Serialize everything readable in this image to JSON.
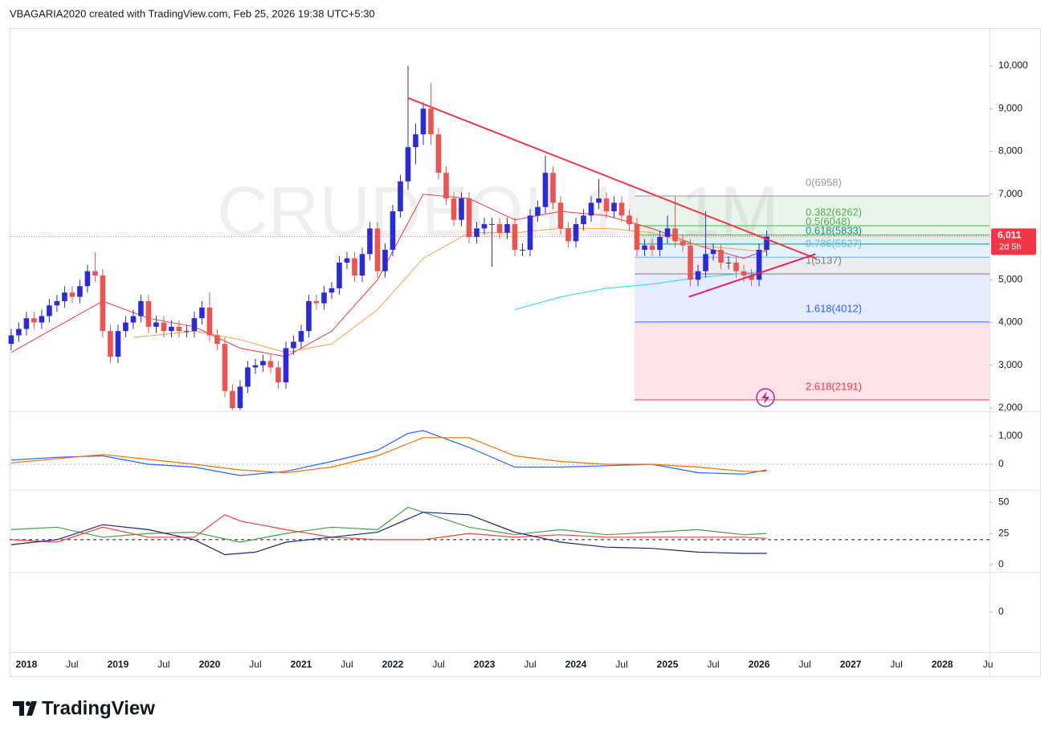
{
  "header": "VBAGARIA2020 created with TradingView.com, Feb 25, 2026 19:38 UTC+5:30",
  "watermark": "CRUDEOIL1!, 1M",
  "logo": "TradingView",
  "chart_data": {
    "type": "candlestick",
    "xlim": [
      -0.2,
      128.2
    ],
    "xticks": [
      {
        "value": 2,
        "label": "2018"
      },
      {
        "value": 8,
        "label": "Jul"
      },
      {
        "value": 14,
        "label": "2019"
      },
      {
        "value": 20,
        "label": "Jul"
      },
      {
        "value": 26,
        "label": "2020"
      },
      {
        "value": 32,
        "label": "Jul"
      },
      {
        "value": 38,
        "label": "2021"
      },
      {
        "value": 44,
        "label": "Jul"
      },
      {
        "value": 50,
        "label": "2022"
      },
      {
        "value": 56,
        "label": "Jul"
      },
      {
        "value": 62,
        "label": "2023"
      },
      {
        "value": 68,
        "label": "Jul"
      },
      {
        "value": 74,
        "label": "2024"
      },
      {
        "value": 80,
        "label": "Jul"
      },
      {
        "value": 86,
        "label": "2025"
      },
      {
        "value": 92,
        "label": "Jul"
      },
      {
        "value": 98,
        "label": "2026"
      },
      {
        "value": 104,
        "label": "Jul"
      },
      {
        "value": 110,
        "label": "2027"
      },
      {
        "value": 116,
        "label": "Jul"
      },
      {
        "value": 122,
        "label": "2028"
      },
      {
        "value": 128,
        "label": "Ju"
      }
    ],
    "ylim": [
      1925,
      10883
    ],
    "yticks": [
      {
        "value": 2000,
        "label": "2,000"
      },
      {
        "value": 3000,
        "label": "3,000"
      },
      {
        "value": 4000,
        "label": "4,000"
      },
      {
        "value": 5000,
        "label": "5,000"
      },
      {
        "value": 6000,
        "label": "6,000"
      },
      {
        "value": 7000,
        "label": "7,000"
      },
      {
        "value": 8000,
        "label": "8,000"
      },
      {
        "value": 9000,
        "label": "9,000"
      },
      {
        "value": 10000,
        "label": "10,000"
      }
    ],
    "up_color": "#2a2ad8",
    "down_color": "#ef5350",
    "open": [
      3500,
      3700,
      3850,
      4100,
      4000,
      4150,
      4400,
      4500,
      4700,
      4600,
      4850,
      5200,
      5100,
      3800,
      3200,
      3800,
      4000,
      4150,
      4500,
      3900,
      4000,
      3800,
      3900,
      3800,
      3800,
      4100,
      4350,
      3700,
      3500,
      2400,
      2000,
      2500,
      2950,
      3000,
      3100,
      2950,
      2600,
      3400,
      3550,
      3800,
      4500,
      4450,
      4700,
      4800,
      5400,
      5500,
      5100,
      5600,
      6200,
      5200,
      5700,
      6600,
      7300,
      8100,
      8400,
      9000,
      8400,
      7500,
      6900,
      6400,
      6900,
      6000,
      6200,
      6300,
      6300,
      6100,
      6300,
      5700,
      5700,
      6500,
      6700,
      7500,
      6800,
      6200,
      5900,
      6300,
      6500,
      6800,
      6900,
      6600,
      6800,
      6500,
      6300,
      5700,
      5800,
      5700,
      6000,
      6200,
      5900,
      5800,
      5000,
      5200,
      5600,
      5700,
      5400,
      5400,
      5200,
      5100,
      5000,
      5700
    ],
    "high": [
      3850,
      4000,
      4250,
      4250,
      4300,
      4550,
      4650,
      4850,
      4850,
      5000,
      5350,
      5650,
      5250,
      3950,
      3950,
      4150,
      4300,
      4650,
      4650,
      4150,
      4150,
      4050,
      4050,
      3950,
      4250,
      4500,
      4700,
      3850,
      3650,
      2550,
      2650,
      3100,
      3150,
      3250,
      3250,
      3100,
      3550,
      3700,
      3950,
      4650,
      4650,
      4850,
      4950,
      5550,
      5650,
      5650,
      5750,
      6350,
      6350,
      5850,
      6750,
      7450,
      10000,
      8650,
      9150,
      9600,
      8550,
      7650,
      7050,
      7050,
      7050,
      6350,
      6450,
      6450,
      6450,
      6450,
      6450,
      5850,
      6650,
      6850,
      7900,
      7650,
      6950,
      6350,
      6450,
      6650,
      6950,
      7350,
      7050,
      6950,
      6950,
      6650,
      6450,
      5950,
      5950,
      6150,
      6500,
      6950,
      6050,
      5950,
      5350,
      6600,
      5850,
      5850,
      5550,
      5550,
      5350,
      5250,
      5850,
      6150
    ],
    "low": [
      3350,
      3550,
      3700,
      3850,
      3850,
      4000,
      4250,
      4350,
      4450,
      4450,
      4700,
      4950,
      3650,
      3050,
      3050,
      3650,
      3850,
      4000,
      3750,
      3750,
      3650,
      3650,
      3650,
      3650,
      3650,
      3950,
      3550,
      3350,
      2250,
      1950,
      1950,
      2350,
      2800,
      2850,
      2800,
      2450,
      2450,
      3250,
      3400,
      3650,
      4300,
      4300,
      4550,
      4650,
      5250,
      4950,
      4950,
      5450,
      5050,
      5050,
      5550,
      6450,
      7100,
      7700,
      8150,
      8150,
      7350,
      6750,
      6250,
      6250,
      5850,
      5850,
      6050,
      5300,
      5950,
      5950,
      5550,
      5550,
      5550,
      6350,
      6550,
      6650,
      6050,
      5750,
      5750,
      6150,
      6350,
      6650,
      6450,
      6450,
      6350,
      6150,
      5550,
      5550,
      5550,
      5550,
      5850,
      5750,
      5650,
      4850,
      4850,
      5050,
      5450,
      5250,
      5250,
      5050,
      4950,
      4850,
      4850,
      5550
    ],
    "close": [
      3700,
      3850,
      4100,
      4000,
      4150,
      4400,
      4500,
      4700,
      4600,
      4850,
      5200,
      5100,
      3800,
      3200,
      3800,
      4000,
      4150,
      4500,
      3900,
      4000,
      3800,
      3900,
      3800,
      3800,
      4100,
      4350,
      3700,
      3500,
      2400,
      2000,
      2500,
      2950,
      3000,
      3100,
      2950,
      2600,
      3400,
      3550,
      3800,
      4500,
      4450,
      4700,
      4800,
      5400,
      5500,
      5100,
      5600,
      6200,
      5200,
      5700,
      6600,
      7300,
      8100,
      8400,
      9000,
      8400,
      7500,
      6900,
      6400,
      6900,
      6000,
      6200,
      6300,
      6300,
      6100,
      6300,
      5700,
      5700,
      6500,
      6700,
      7500,
      6800,
      6200,
      5900,
      6300,
      6500,
      6800,
      6900,
      6600,
      6800,
      6500,
      6300,
      5700,
      5800,
      5700,
      6000,
      6200,
      5900,
      5800,
      5000,
      5200,
      5600,
      5700,
      5400,
      5400,
      5200,
      5100,
      5000,
      5700,
      6011
    ],
    "last_price": {
      "value": 6011,
      "label": "6,011",
      "countdown": "2d 5h",
      "color": "#f23645"
    },
    "moving_averages": [
      {
        "color": "#f23645",
        "x": [
          0,
          6,
          12,
          18,
          24,
          30,
          36,
          42,
          48,
          54,
          60,
          66,
          72,
          78,
          84,
          90,
          96,
          99
        ],
        "values": [
          3300,
          3900,
          4500,
          4100,
          3900,
          3400,
          3200,
          3800,
          5000,
          7000,
          6900,
          6400,
          6600,
          6500,
          6200,
          5800,
          5500,
          5700
        ]
      },
      {
        "color": "#f7a046",
        "x": [
          16,
          24,
          30,
          36,
          42,
          48,
          54,
          60,
          66,
          72,
          78,
          84,
          90,
          96,
          99
        ],
        "values": [
          3650,
          3800,
          3600,
          3300,
          3500,
          4300,
          5500,
          6100,
          6100,
          6200,
          6200,
          6100,
          5800,
          5700,
          5650
        ]
      },
      {
        "color": "#26d7e8",
        "x": [
          66,
          72,
          78,
          84,
          90,
          96,
          99
        ],
        "values": [
          4300,
          4600,
          4800,
          4900,
          5050,
          5150,
          5200
        ]
      }
    ],
    "fib_start": 81.7,
    "fib_levels": [
      {
        "value": 6958,
        "label": "0(6958)",
        "color": "#9598a1",
        "fill": "rgba(76,175,80,0.12)"
      },
      {
        "value": 6262,
        "label": "0.382(6262)",
        "color": "#4caf50",
        "fill": "rgba(76,175,80,0.14)"
      },
      {
        "value": 6048,
        "label": "0.5(6048)",
        "color": "#4caf50",
        "fill": "rgba(8,153,129,0.14)"
      },
      {
        "value": 5833,
        "label": "0.618(5833)",
        "color": "#089981",
        "fill": "rgba(100,181,246,0.18)"
      },
      {
        "value": 5527,
        "label": "0.786(5527)",
        "color": "#64b5f6",
        "fill": "rgba(120,123,134,0.14)"
      },
      {
        "value": 5137,
        "label": "1(5137)",
        "color": "#787b86",
        "fill": "rgba(41,98,255,0.12)"
      },
      {
        "value": 4012,
        "label": "1.618(4012)",
        "color": "#2962ff",
        "fill": "rgba(242,54,69,0.14)"
      },
      {
        "value": 2191,
        "label": "2.618(2191)",
        "color": "#f23645"
      }
    ],
    "trendlines": [
      {
        "color": "#f23645",
        "x": [
          52,
          105.4
        ],
        "values": [
          9250,
          5500
        ]
      },
      {
        "color": "#e91e63",
        "x": [
          88.8,
          105.4
        ],
        "values": [
          4600,
          5600
        ]
      }
    ],
    "panes": [
      {
        "type": "line",
        "ylim": [
          -914,
          1886
        ],
        "yticks": [
          0,
          {
            "value": 1000,
            "label": "1,000"
          }
        ],
        "zero_line": 0,
        "series": [
          {
            "color": "#2962ff",
            "x": [
              0,
              6,
              12,
              18,
              24,
              30,
              36,
              42,
              48,
              52,
              54,
              60,
              66,
              72,
              78,
              84,
              90,
              96,
              99
            ],
            "values": [
              150,
              250,
              300,
              0,
              -100,
              -400,
              -250,
              100,
              500,
              1100,
              1200,
              600,
              -100,
              -100,
              -50,
              0,
              -300,
              -350,
              -200
            ]
          },
          {
            "color": "#ff6d00",
            "x": [
              0,
              12,
              24,
              30,
              36,
              42,
              48,
              54,
              60,
              66,
              72,
              78,
              84,
              90,
              96,
              99
            ],
            "values": [
              50,
              350,
              0,
              -200,
              -300,
              -100,
              300,
              950,
              950,
              300,
              100,
              0,
              0,
              -100,
              -250,
              -250
            ]
          }
        ]
      },
      {
        "type": "line",
        "ylim": [
          -5.9,
          59.9
        ],
        "yticks": [
          0,
          25,
          50
        ],
        "reference": 20,
        "series": [
          {
            "color": "#43a047",
            "x": [
              0,
              6,
              12,
              18,
              24,
              30,
              36,
              42,
              48,
              52,
              54,
              60,
              66,
              72,
              78,
              84,
              90,
              96,
              99
            ],
            "values": [
              28,
              30,
              22,
              25,
              26,
              18,
              25,
              30,
              28,
              46,
              42,
              30,
              24,
              28,
              24,
              26,
              28,
              24,
              25
            ]
          },
          {
            "color": "#f44336",
            "x": [
              0,
              6,
              12,
              18,
              24,
              28,
              30,
              36,
              42,
              48,
              54,
              60,
              66,
              72,
              78,
              84,
              90,
              96,
              99
            ],
            "values": [
              20,
              18,
              30,
              22,
              22,
              40,
              35,
              28,
              22,
              20,
              20,
              25,
              22,
              24,
              22,
              22,
              22,
              22,
              21
            ]
          },
          {
            "color": "#1a237e",
            "x": [
              0,
              6,
              12,
              18,
              24,
              28,
              32,
              36,
              42,
              48,
              54,
              60,
              66,
              72,
              78,
              84,
              90,
              96,
              99
            ],
            "values": [
              16,
              20,
              32,
              28,
              20,
              8,
              10,
              18,
              22,
              26,
              42,
              40,
              26,
              18,
              14,
              13,
              10,
              9,
              9
            ]
          }
        ]
      },
      {
        "type": "line",
        "ylim": [
          -1,
          1
        ],
        "yticks": [
          0
        ],
        "series": []
      }
    ]
  }
}
